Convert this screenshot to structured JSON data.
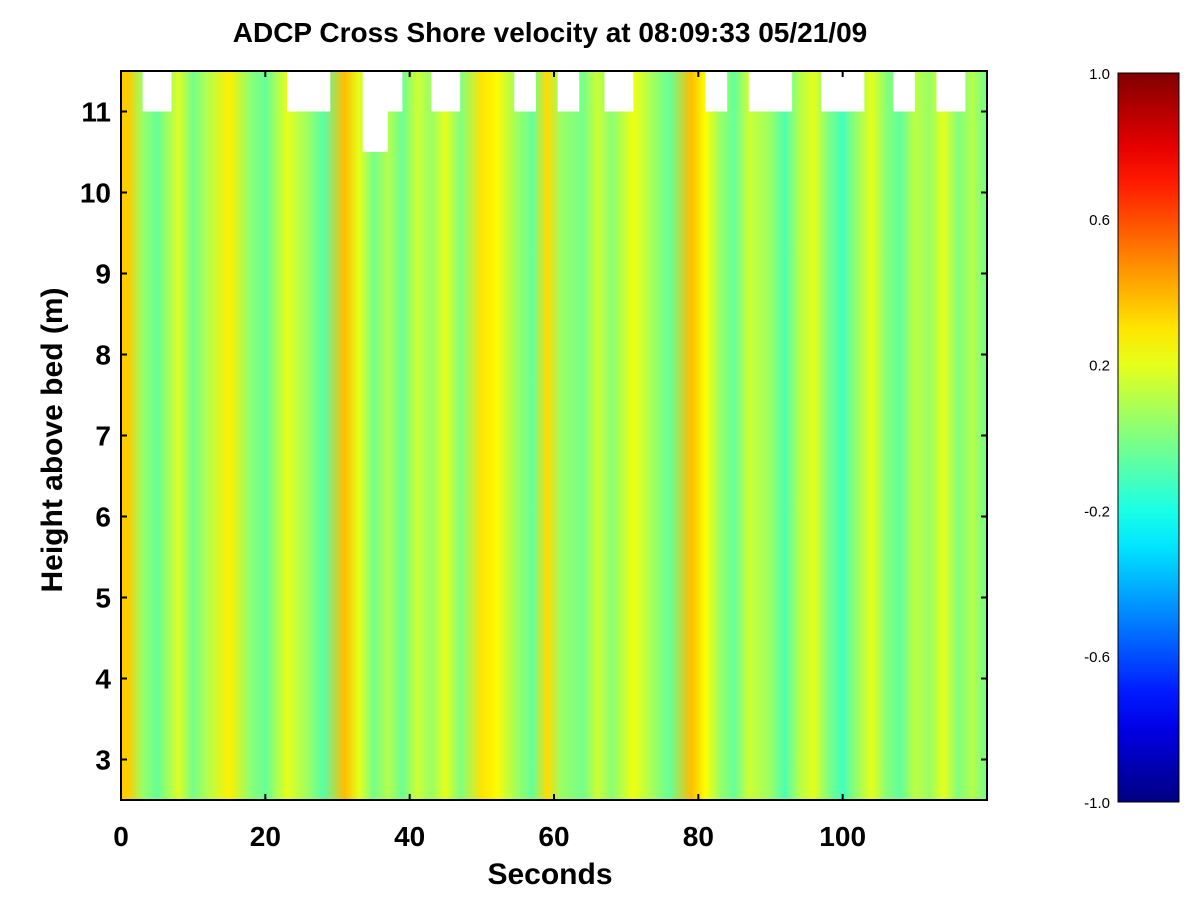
{
  "chart_data": {
    "type": "heatmap",
    "title": "ADCP Cross Shore velocity at 08:09:33 05/21/09",
    "xlabel": "Seconds",
    "ylabel": "Height above bed (m)",
    "xlim": [
      0,
      120
    ],
    "ylim": [
      2.5,
      11.5
    ],
    "x_ticks": [
      0,
      20,
      40,
      60,
      80,
      100
    ],
    "y_ticks": [
      3,
      4,
      5,
      6,
      7,
      8,
      9,
      10,
      11
    ],
    "colormap": "jet",
    "clim": [
      -1.0,
      1.0
    ],
    "colorbar_ticks": [
      "1.0",
      "0.6",
      "0.2",
      "-0.2",
      "-0.6",
      "-1.0"
    ],
    "colorbar_tick_values": [
      1.0,
      0.6,
      0.2,
      -0.2,
      -0.6,
      -1.0
    ],
    "grid": false,
    "stripes": [
      {
        "x": 1,
        "v": 0.35
      },
      {
        "x": 3,
        "v": 0.05
      },
      {
        "x": 5,
        "v": -0.05
      },
      {
        "x": 8,
        "v": 0.18
      },
      {
        "x": 10,
        "v": -0.02
      },
      {
        "x": 12,
        "v": 0.1
      },
      {
        "x": 15,
        "v": 0.28
      },
      {
        "x": 18,
        "v": 0.02
      },
      {
        "x": 20,
        "v": -0.05
      },
      {
        "x": 23,
        "v": 0.2
      },
      {
        "x": 26,
        "v": 0.05
      },
      {
        "x": 28,
        "v": -0.08
      },
      {
        "x": 31,
        "v": 0.38
      },
      {
        "x": 33,
        "v": 0.2
      },
      {
        "x": 35,
        "v": -0.02
      },
      {
        "x": 37,
        "v": 0.1
      },
      {
        "x": 39,
        "v": -0.04
      },
      {
        "x": 41,
        "v": 0.15
      },
      {
        "x": 43,
        "v": 0.05
      },
      {
        "x": 45,
        "v": 0.2
      },
      {
        "x": 47,
        "v": 0.0
      },
      {
        "x": 50,
        "v": 0.3
      },
      {
        "x": 52,
        "v": 0.26
      },
      {
        "x": 55,
        "v": 0.05
      },
      {
        "x": 57,
        "v": -0.05
      },
      {
        "x": 59,
        "v": 0.32
      },
      {
        "x": 61,
        "v": 0.05
      },
      {
        "x": 64,
        "v": -0.02
      },
      {
        "x": 66,
        "v": 0.15
      },
      {
        "x": 68,
        "v": 0.02
      },
      {
        "x": 71,
        "v": 0.22
      },
      {
        "x": 74,
        "v": 0.05
      },
      {
        "x": 76,
        "v": -0.05
      },
      {
        "x": 79,
        "v": 0.38
      },
      {
        "x": 81,
        "v": 0.25
      },
      {
        "x": 83,
        "v": 0.05
      },
      {
        "x": 85,
        "v": -0.05
      },
      {
        "x": 87,
        "v": 0.15
      },
      {
        "x": 90,
        "v": 0.05
      },
      {
        "x": 92,
        "v": -0.1
      },
      {
        "x": 94,
        "v": 0.1
      },
      {
        "x": 96,
        "v": 0.2
      },
      {
        "x": 98,
        "v": 0.0
      },
      {
        "x": 100,
        "v": -0.12
      },
      {
        "x": 102,
        "v": 0.05
      },
      {
        "x": 104,
        "v": 0.2
      },
      {
        "x": 106,
        "v": 0.02
      },
      {
        "x": 108,
        "v": -0.06
      },
      {
        "x": 110,
        "v": 0.12
      },
      {
        "x": 112,
        "v": 0.05
      },
      {
        "x": 114,
        "v": 0.2
      },
      {
        "x": 116,
        "v": 0.0
      },
      {
        "x": 118,
        "v": 0.1
      },
      {
        "x": 120,
        "v": -0.03
      }
    ],
    "missing_data": [
      {
        "x0": 3.0,
        "x1": 7.0,
        "y0": 11.0
      },
      {
        "x0": 23.0,
        "x1": 29.0,
        "y0": 11.0
      },
      {
        "x0": 33.5,
        "x1": 37.0,
        "y0": 10.5
      },
      {
        "x0": 37.0,
        "x1": 39.0,
        "y0": 11.0
      },
      {
        "x0": 43.0,
        "x1": 47.0,
        "y0": 11.0
      },
      {
        "x0": 54.5,
        "x1": 57.5,
        "y0": 11.0
      },
      {
        "x0": 60.5,
        "x1": 63.5,
        "y0": 11.0
      },
      {
        "x0": 67.0,
        "x1": 71.0,
        "y0": 11.0
      },
      {
        "x0": 81.0,
        "x1": 84.0,
        "y0": 11.0
      },
      {
        "x0": 87.0,
        "x1": 93.0,
        "y0": 11.0
      },
      {
        "x0": 97.0,
        "x1": 103.0,
        "y0": 11.0
      },
      {
        "x0": 107.0,
        "x1": 110.0,
        "y0": 11.0
      },
      {
        "x0": 113.0,
        "x1": 117.0,
        "y0": 11.0
      }
    ]
  }
}
